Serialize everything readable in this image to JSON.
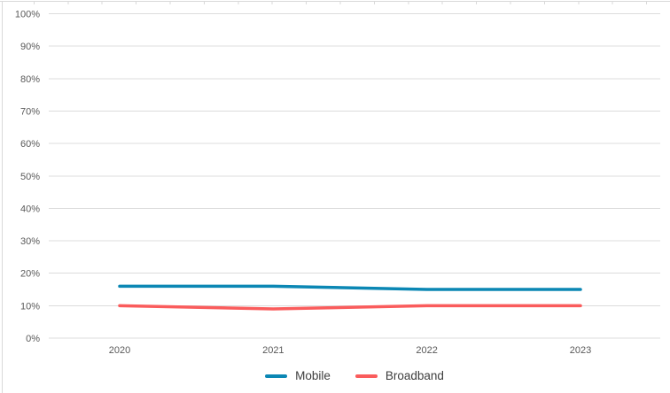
{
  "window": {
    "background": "#ffffff",
    "frame_border_color": "#d9d9d9"
  },
  "chart_data": {
    "type": "line",
    "title": "",
    "xlabel": "",
    "ylabel": "",
    "categories": [
      "2020",
      "2021",
      "2022",
      "2023"
    ],
    "series": [
      {
        "name": "Mobile",
        "color": "#0b87b4",
        "values": [
          16,
          16,
          15,
          15
        ]
      },
      {
        "name": "Broadband",
        "color": "#fa5c5c",
        "values": [
          10,
          9,
          10,
          10
        ]
      }
    ],
    "ylim": [
      0,
      100
    ],
    "ytick_step": 10,
    "yticks": [
      "0%",
      "10%",
      "20%",
      "30%",
      "40%",
      "50%",
      "60%",
      "70%",
      "80%",
      "90%",
      "100%"
    ],
    "grid": true,
    "gridline_color": "#dcdcdc",
    "axis_text_color": "#595959",
    "legend_position": "bottom",
    "legend_text_color": "#3d3d3d"
  }
}
